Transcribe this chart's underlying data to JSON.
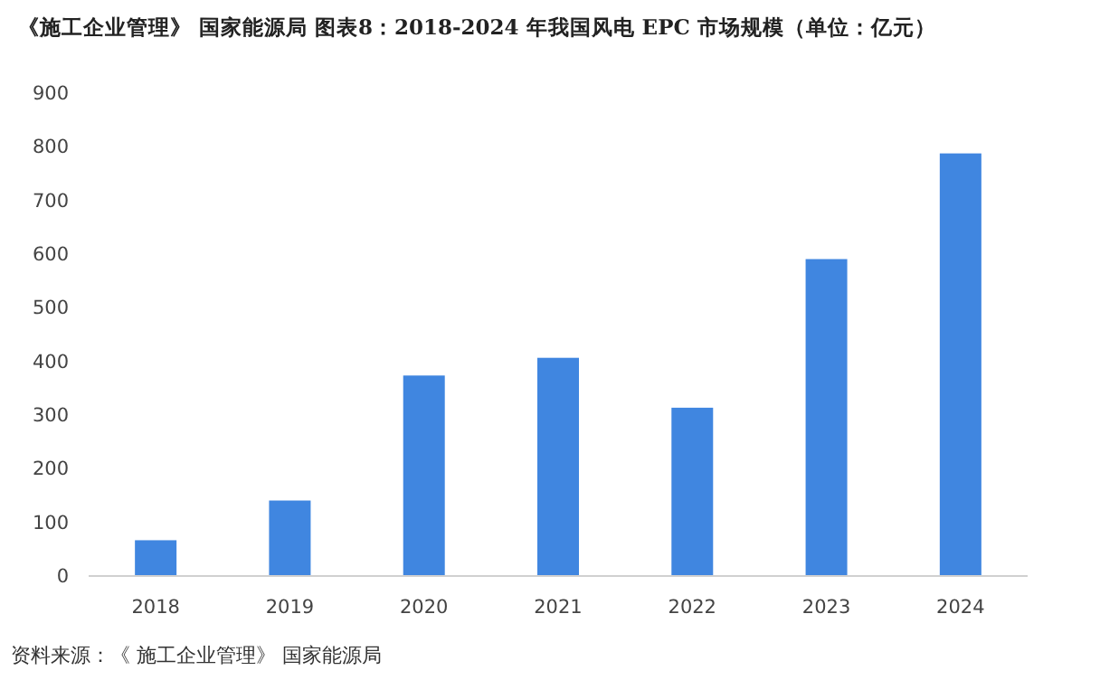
{
  "chart_data": {
    "type": "bar",
    "title": "《施工企业管理》 国家能源局  图表8：2018-2024 年我国风电 EPC 市场规模（单位：亿元）",
    "categories": [
      "2018",
      "2019",
      "2020",
      "2021",
      "2022",
      "2023",
      "2024"
    ],
    "values": [
      65,
      139,
      372,
      405,
      312,
      589,
      786
    ],
    "color": "#4086e0",
    "ylim": [
      0,
      900
    ],
    "yticks": [
      0,
      100,
      200,
      300,
      400,
      500,
      600,
      700,
      800,
      900
    ],
    "grid": false,
    "annotations": [
      "资料来源：《 施工企业管理》 国家能源局"
    ]
  }
}
